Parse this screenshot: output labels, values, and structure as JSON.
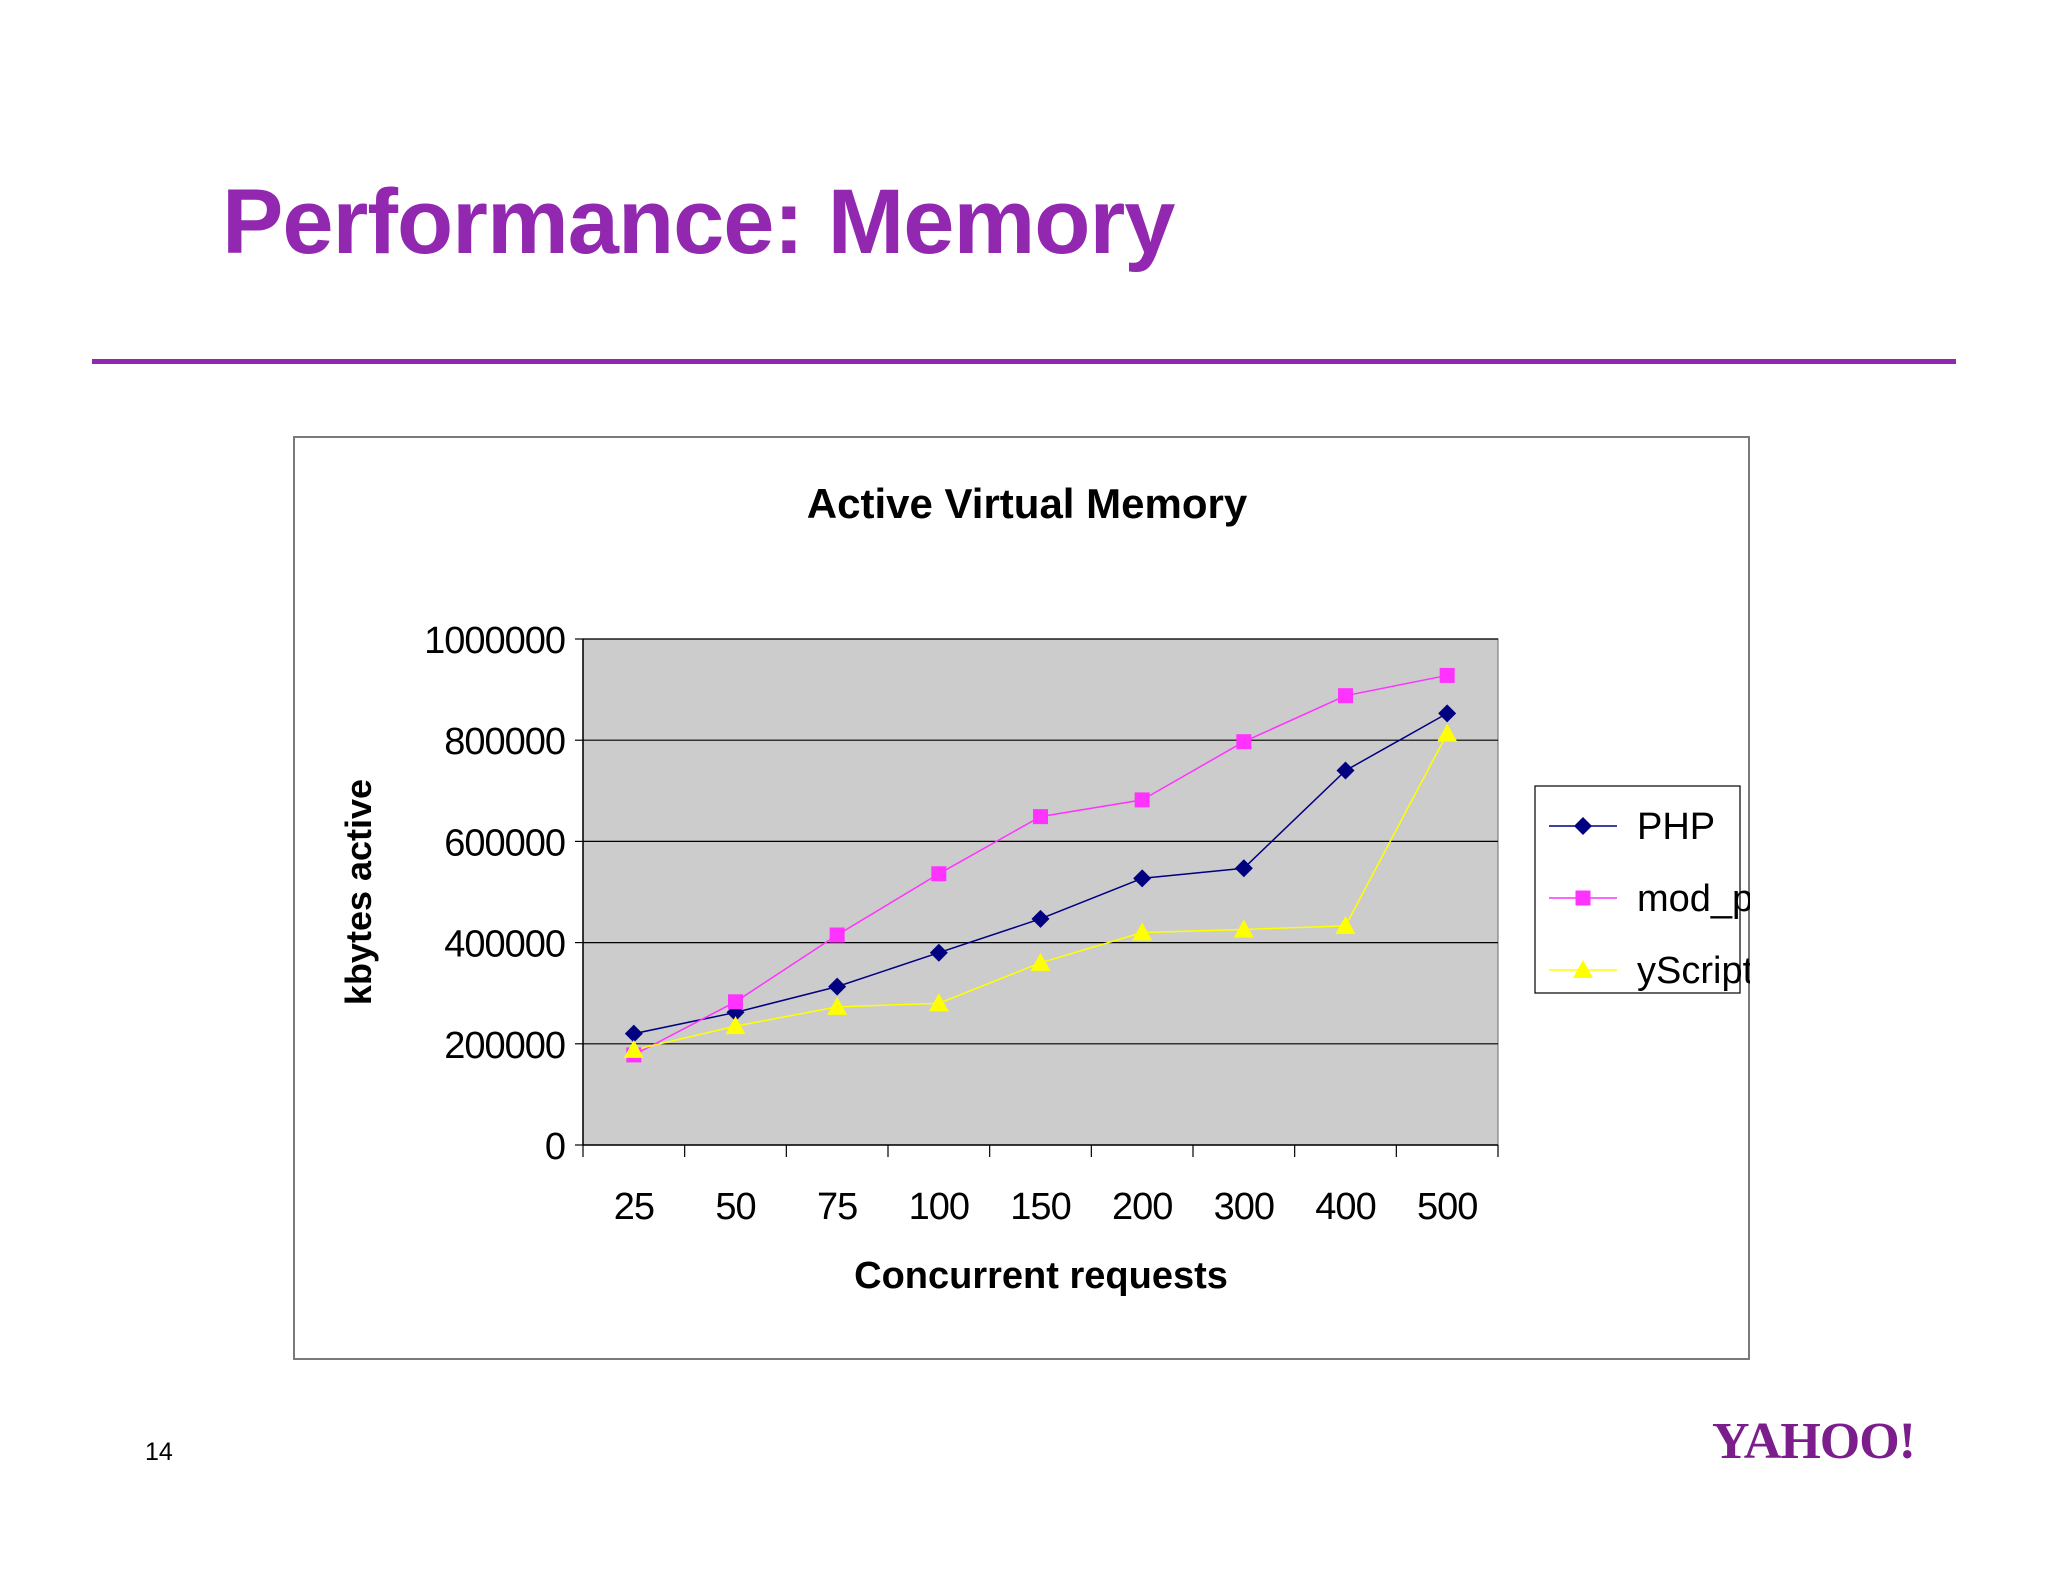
{
  "slide": {
    "title": "Performance: Memory",
    "page_number": "14",
    "logo_text": "YAHOO!"
  },
  "colors": {
    "title": "#9228b0",
    "rule": "#9228b0",
    "plot_background": "#cccccc",
    "php": "#000080",
    "mod_perl": "#ff33ff",
    "yscript": "#ffff00"
  },
  "chart_data": {
    "type": "line",
    "title": "Active Virtual Memory",
    "xlabel": "Concurrent requests",
    "ylabel": "kbytes active",
    "categories": [
      "25",
      "50",
      "75",
      "100",
      "150",
      "200",
      "300",
      "400",
      "500"
    ],
    "yticks": [
      "0",
      "200000",
      "400000",
      "600000",
      "800000",
      "1000000"
    ],
    "ylim": [
      0,
      1000000
    ],
    "grid": "horizontal",
    "legend_position": "right",
    "series": [
      {
        "name": "PHP",
        "marker": "diamond",
        "color": "#000080",
        "values": [
          220000,
          262000,
          313000,
          380000,
          447000,
          527000,
          547000,
          740000,
          853000
        ]
      },
      {
        "name": "mod_perl",
        "marker": "square",
        "color": "#ff33ff",
        "values": [
          178000,
          283000,
          415000,
          536000,
          649000,
          682000,
          797000,
          888000,
          928000
        ]
      },
      {
        "name": "yScript",
        "marker": "triangle",
        "color": "#ffff00",
        "values": [
          188000,
          235000,
          273000,
          280000,
          360000,
          420000,
          426000,
          433000,
          813000
        ]
      }
    ]
  }
}
